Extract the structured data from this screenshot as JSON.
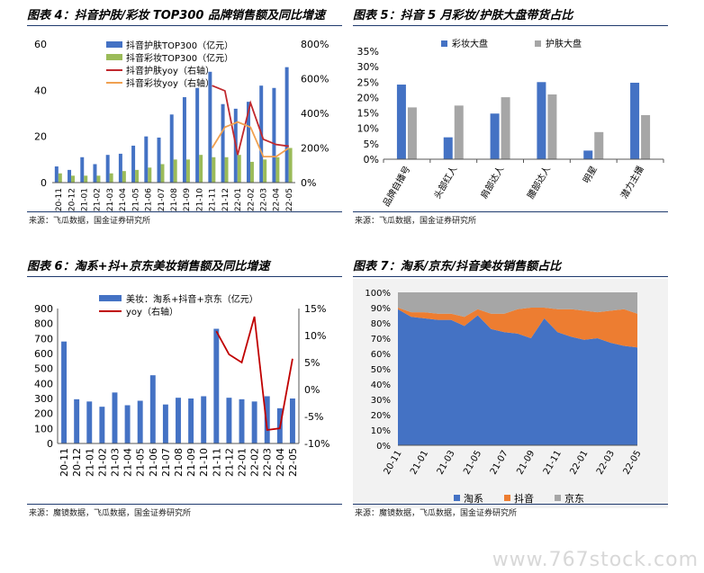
{
  "panels": {
    "p4": {
      "title": "图表 4：抖音护肤/彩妆 TOP300 品牌销售额及同比增速",
      "source": "来源：飞瓜数据，国金证券研究所"
    },
    "p5": {
      "title": "图表 5：抖音 5 月彩妆/护肤大盘带货占比",
      "source": "来源：飞瓜数据，国金证券研究所"
    },
    "p6": {
      "title": "图表 6：淘系+抖+京东美妆销售额及同比增速",
      "source": "来源：魔镜数据，飞瓜数据，国金证券研究所"
    },
    "p7": {
      "title": "图表 7：淘系/京东/抖音美妆销售额占比",
      "source": "来源：魔镜数据，飞瓜数据，国金证券研究所"
    }
  },
  "watermark": "www.767stock.com",
  "chart_data": [
    {
      "id": "c4",
      "type": "bar",
      "categories": [
        "20-11",
        "20-12",
        "21-01",
        "21-02",
        "21-03",
        "21-04",
        "21-05",
        "21-06",
        "21-07",
        "21-08",
        "21-09",
        "21-10",
        "21-11",
        "21-12",
        "22-01",
        "22-02",
        "22-03",
        "22-04",
        "22-05"
      ],
      "series": [
        {
          "name": "抖音护肤TOP300（亿元）",
          "kind": "bar",
          "axis": "left",
          "color": "#4472c4",
          "values": [
            7,
            5.5,
            11,
            8,
            12,
            12.5,
            16,
            20,
            19.5,
            29.5,
            37,
            41,
            48,
            34,
            32,
            35,
            42,
            41,
            50
          ]
        },
        {
          "name": "抖音彩妆TOP300（亿元）",
          "kind": "bar",
          "axis": "left",
          "color": "#9bbb59",
          "values": [
            4,
            3,
            3,
            3,
            4,
            5,
            5.5,
            6.5,
            8,
            10,
            10,
            12,
            11,
            11,
            12,
            9,
            10,
            11,
            15
          ]
        },
        {
          "name": "抖音护肤yoy（右轴）",
          "kind": "line",
          "axis": "right",
          "color": "#c0282d",
          "values": [
            null,
            null,
            null,
            null,
            null,
            null,
            null,
            null,
            null,
            null,
            null,
            null,
            560,
            530,
            160,
            460,
            250,
            220,
            210
          ]
        },
        {
          "name": "抖音彩妆yoy（右轴）",
          "kind": "line",
          "axis": "right",
          "color": "#f0a050",
          "values": [
            null,
            null,
            null,
            null,
            null,
            null,
            null,
            null,
            null,
            null,
            null,
            null,
            200,
            320,
            350,
            320,
            150,
            150,
            200
          ]
        }
      ],
      "y_left": {
        "min": 0,
        "max": 60,
        "ticks": [
          "0",
          "20",
          "40",
          "60"
        ]
      },
      "y_right": {
        "min": 0,
        "max": 800,
        "ticks": [
          "0%",
          "200%",
          "400%",
          "600%",
          "800%"
        ]
      }
    },
    {
      "id": "c5",
      "type": "bar",
      "categories": [
        "品牌自播号",
        "头部红人",
        "肩部达人",
        "腰部达人",
        "明星",
        "潜力主播"
      ],
      "series": [
        {
          "name": "彩妆大盘",
          "color": "#4472c4",
          "values": [
            24.2,
            7.1,
            14.8,
            25,
            2.8,
            24.8
          ]
        },
        {
          "name": "护肤大盘",
          "color": "#a6a6a6",
          "values": [
            16.8,
            17.4,
            20.1,
            21,
            8.8,
            14.3
          ]
        }
      ],
      "y": {
        "min": 0,
        "max": 35,
        "ticks": [
          "0%",
          "5%",
          "10%",
          "15%",
          "20%",
          "25%",
          "30%",
          "35%"
        ]
      }
    },
    {
      "id": "c6",
      "type": "bar",
      "categories": [
        "20-11",
        "20-12",
        "21-01",
        "21-02",
        "21-03",
        "21-04",
        "21-05",
        "21-06",
        "21-07",
        "21-08",
        "21-09",
        "21-10",
        "21-11",
        "21-12",
        "22-01",
        "22-02",
        "22-03",
        "22-04",
        "22-05"
      ],
      "series": [
        {
          "name": "美妆：淘系+抖音+京东（亿元）",
          "kind": "bar",
          "axis": "left",
          "color": "#4472c4",
          "values": [
            680,
            295,
            280,
            245,
            340,
            255,
            285,
            455,
            260,
            305,
            300,
            315,
            765,
            305,
            295,
            280,
            315,
            235,
            300
          ]
        },
        {
          "name": "yoy（右轴）",
          "kind": "line",
          "axis": "right",
          "color": "#c00000",
          "values": [
            null,
            null,
            null,
            null,
            null,
            null,
            null,
            null,
            null,
            null,
            null,
            null,
            10.8,
            6.5,
            5,
            13.5,
            -7.5,
            -7.2,
            5.7
          ]
        }
      ],
      "y_left": {
        "min": 0,
        "max": 900,
        "ticks": [
          "0",
          "100",
          "200",
          "300",
          "400",
          "500",
          "600",
          "700",
          "800",
          "900"
        ]
      },
      "y_right": {
        "min": -10,
        "max": 15,
        "ticks": [
          "-10%",
          "-5%",
          "0%",
          "5%",
          "10%",
          "15%"
        ]
      }
    },
    {
      "id": "c7",
      "type": "area",
      "categories": [
        "20-11",
        "20-12",
        "21-01",
        "21-02",
        "21-03",
        "21-04",
        "21-05",
        "21-06",
        "21-07",
        "21-08",
        "21-09",
        "21-10",
        "21-11",
        "21-12",
        "22-01",
        "22-02",
        "22-03",
        "22-04",
        "22-05"
      ],
      "x_labels": [
        "20-11",
        "21-01",
        "21-03",
        "21-05",
        "21-07",
        "21-09",
        "21-11",
        "22-01",
        "22-03",
        "22-05"
      ],
      "series": [
        {
          "name": "淘系",
          "color": "#4472c4",
          "values": [
            89,
            84,
            83,
            82,
            82,
            78,
            85,
            76,
            74,
            73,
            70,
            83,
            74,
            71,
            69,
            70,
            67,
            65,
            64
          ]
        },
        {
          "name": "抖音",
          "color": "#ed7d31",
          "values": [
            1,
            3,
            4,
            4,
            4,
            6,
            4,
            10,
            12,
            16,
            20,
            7,
            15,
            18,
            19,
            17,
            21,
            24,
            22
          ]
        },
        {
          "name": "京东",
          "color": "#a6a6a6",
          "values": [
            10,
            13,
            13,
            14,
            14,
            16,
            11,
            14,
            14,
            11,
            10,
            10,
            11,
            11,
            12,
            13,
            12,
            11,
            14
          ]
        }
      ],
      "y": {
        "min": 0,
        "max": 100,
        "ticks": [
          "0%",
          "10%",
          "20%",
          "30%",
          "40%",
          "50%",
          "60%",
          "70%",
          "80%",
          "90%",
          "100%"
        ]
      }
    }
  ]
}
